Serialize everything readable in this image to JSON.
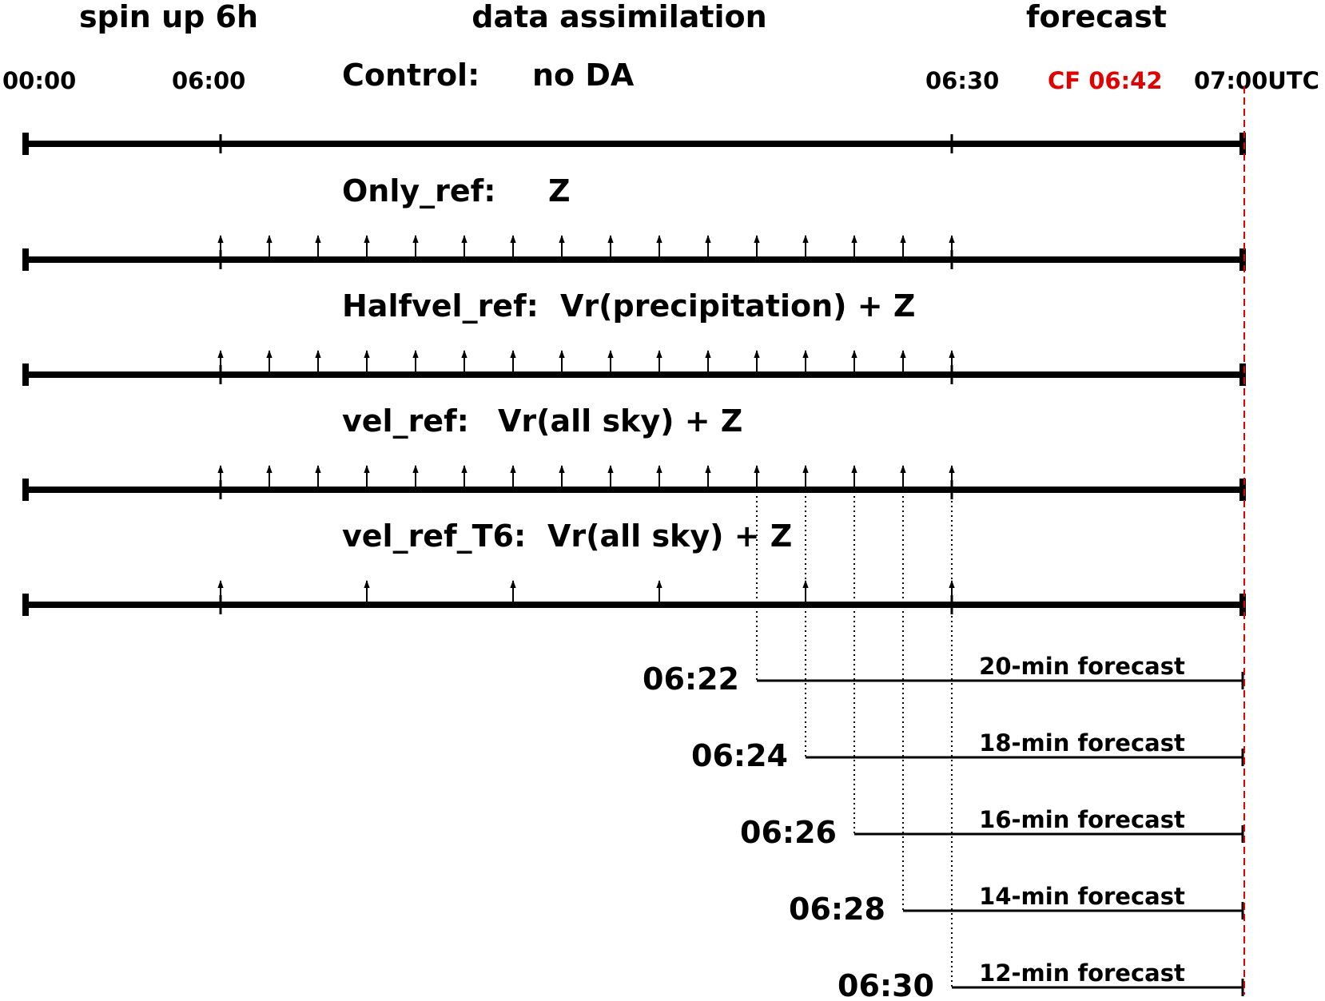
{
  "phases": {
    "spinup": "spin up 6h",
    "da": "data assimilation",
    "forecast": "forecast"
  },
  "time_labels": {
    "t0000": "00:00",
    "t0600": "06:00",
    "t0630": "06:30",
    "cf": "CF 06:42",
    "t0700": "07:00UTC"
  },
  "colors": {
    "line": "#000000",
    "cf": "#e00000"
  },
  "experiments": [
    {
      "name": "Control:",
      "desc": "no DA",
      "obs_minutes": []
    },
    {
      "name": "Only_ref:",
      "desc": "Z",
      "obs_minutes": [
        0,
        2,
        4,
        6,
        8,
        10,
        12,
        14,
        16,
        18,
        20,
        22,
        24,
        26,
        28,
        30
      ]
    },
    {
      "name": "Halfvel_ref:",
      "desc": "Vr(precipitation) + Z",
      "obs_minutes": [
        0,
        2,
        4,
        6,
        8,
        10,
        12,
        14,
        16,
        18,
        20,
        22,
        24,
        26,
        28,
        30
      ]
    },
    {
      "name": "vel_ref:",
      "desc": "Vr(all sky) + Z",
      "obs_minutes": [
        0,
        2,
        4,
        6,
        8,
        10,
        12,
        14,
        16,
        18,
        20,
        22,
        24,
        26,
        28,
        30
      ]
    },
    {
      "name": "vel_ref_T6:",
      "desc": "Vr(all sky) + Z",
      "obs_minutes": [
        0,
        6,
        12,
        18,
        24,
        30
      ]
    }
  ],
  "forecasts": [
    {
      "init": "06:22",
      "init_minute": 22,
      "label": "20-min forecast"
    },
    {
      "init": "06:24",
      "init_minute": 24,
      "label": "18-min forecast"
    },
    {
      "init": "06:26",
      "init_minute": 26,
      "label": "16-min forecast"
    },
    {
      "init": "06:28",
      "init_minute": 28,
      "label": "14-min forecast"
    },
    {
      "init": "06:30",
      "init_minute": 30,
      "label": "12-min forecast"
    }
  ],
  "cf_minute": 42
}
